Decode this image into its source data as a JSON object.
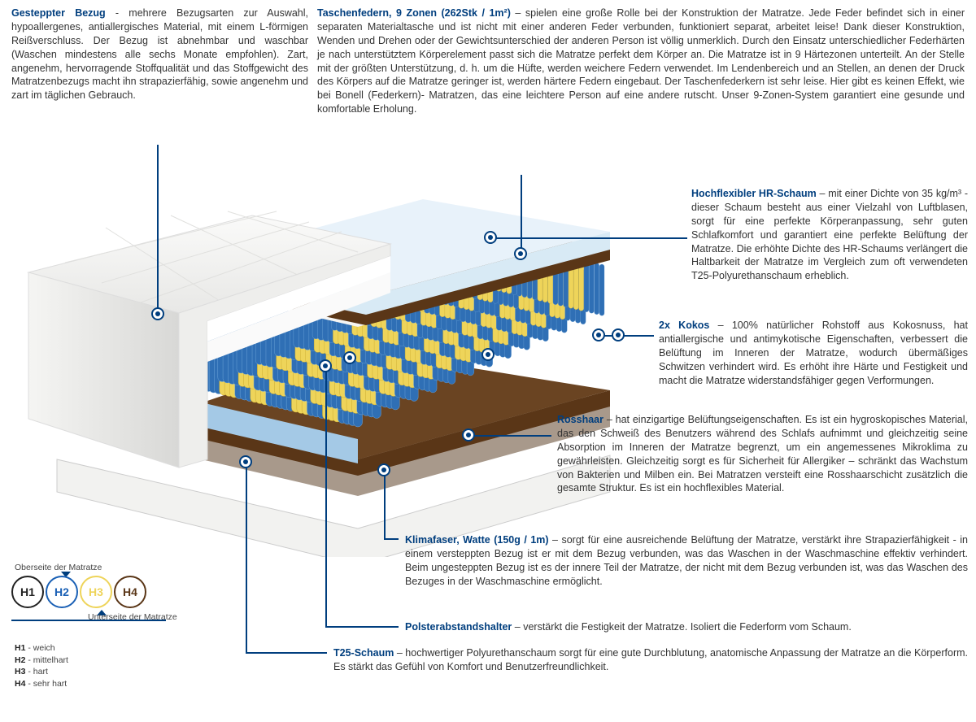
{
  "colors": {
    "accent": "#003e7e",
    "text": "#333333",
    "cover": "#f4f4f2",
    "cover_shadow": "#dedede",
    "foam_top": "#cfe6f5",
    "spring_blue": "#2f6fb5",
    "spring_blue_light": "#6fa6d9",
    "spring_yellow": "#eed45a",
    "spring_yellow_dark": "#caa92e",
    "kokos": "#5a3617",
    "rosshaar": "#a8998b",
    "t25": "#a4c9e6",
    "white": "#ffffff"
  },
  "sections": {
    "gesteppter": {
      "title": "Gesteppter Bezug",
      "sep": " - ",
      "text": "mehrere Bezugsarten zur Auswahl, hypoallergenes, antiallergisches Material, mit einem L-förmigen Reißverschluss. Der Bezug ist abnehmbar und waschbar (Waschen mindestens alle sechs Monate empfohlen). Zart, angenehm, hervorragende Stoffqualität und das Stoffgewicht des Matratzenbezugs macht ihn strapazierfähig, sowie angenehm und zart im täglichen Gebrauch."
    },
    "taschenfedern": {
      "title": "Taschenfedern, 9 Zonen (262Stk / 1m²)",
      "sep": " – ",
      "text": "spielen eine große Rolle bei der Konstruktion der Matratze. Jede Feder befindet sich in einer separaten Materialtasche und ist nicht mit einer anderen Feder verbunden, funktioniert separat, arbeitet leise! Dank dieser Konstruktion, Wenden und Drehen oder der Gewichtsunterschied der anderen Person ist völlig unmerklich. Durch den Einsatz unterschiedlicher Federhärten je nach unterstütztem Körperelement passt sich die Matratze perfekt dem Körper an. Die Matratze ist in 9 Härtezonen unterteilt. An der Stelle mit der größten Unterstützung, d. h. um die Hüfte, werden weichere Federn verwendet. Im Lendenbereich und an Stellen, an denen der Druck des Körpers auf die Matratze geringer ist, werden härtere Federn eingebaut. Der Taschenfederkern ist sehr leise. Hier gibt es keinen Effekt, wie bei Bonell (Federkern)- Matratzen, das eine leichtere Person auf eine andere rutscht. Unser 9-Zonen-System garantiert eine gesunde und komfortable Erholung."
    },
    "hr": {
      "title": "Hochflexibler HR-Schaum",
      "sep": " – ",
      "text": "mit einer Dichte von 35 kg/m³ - dieser Schaum besteht aus einer Vielzahl von Luftblasen, sorgt für eine perfekte Körperanpassung, sehr guten Schlafkomfort und garantiert eine perfekte Belüftung der Matratze. Die erhöhte Dichte des HR-Schaums verlängert die Haltbarkeit der Matratze im Vergleich zum oft verwendeten T25-Polyurethanschaum erheblich."
    },
    "kokos": {
      "title": "2x Kokos",
      "sep": " – ",
      "text": "100% natürlicher Rohstoff aus Kokosnuss, hat antiallergische und antimykotische Eigenschaften, verbessert die Belüftung im Inneren der Matratze, wodurch übermäßiges Schwitzen verhindert wird. Es erhöht ihre Härte und Festigkeit und macht die Matratze widerstandsfähiger gegen Verformungen."
    },
    "ross": {
      "title": "Rosshaar",
      "sep": " – ",
      "text": "hat einzigartige Belüftungseigenschaften. Es ist ein hygroskopisches Material, das den Schweiß des Benutzers während des Schlafs aufnimmt und gleichzeitig seine Absorption im Inneren der Matratze begrenzt, um ein angemessenes Mikroklima zu gewährleisten. Gleichzeitig sorgt es für Sicherheit für Allergiker – schränkt das Wachstum von Bakterien und Milben ein. Bei Matratzen versteift eine Rosshaarschicht zusätzlich die gesamte Struktur. Es ist ein hochflexibles Material."
    },
    "klima": {
      "title": "Klimafaser, Watte (150g / 1m)",
      "sep": " – ",
      "text": "sorgt für eine ausreichende Belüftung der Matratze, verstärkt ihre Strapazierfähigkeit - in einem versteppten Bezug ist er mit dem Bezug verbunden, was das Waschen in der Waschmaschine effektiv verhindert. Beim ungesteppten Bezug ist es der innere Teil der Matratze, der nicht mit dem Bezug verbunden ist, was das Waschen des Bezuges in der Waschmaschine ermöglicht."
    },
    "polster": {
      "title": "Polsterabstandshalter",
      "sep": " – ",
      "text": "verstärkt die Festigkeit der Matratze. Isoliert die Federform vom Schaum."
    },
    "t25": {
      "title": "T25-Schaum",
      "sep": " – ",
      "text": "hochwertiger Polyurethanschaum sorgt für eine gute Durchblutung, anatomische Anpassung der Matratze an die Körperform. Es stärkt das Gefühl von Komfort und Benutzerfreundlichkeit."
    }
  },
  "legend": {
    "top_label": "Oberseite der Matratze",
    "bottom_label": "Unterseite der Matratze",
    "items": [
      {
        "code": "H1",
        "color": "#222222",
        "def": "weich"
      },
      {
        "code": "H2",
        "color": "#1a60b5",
        "def": "mittelhart"
      },
      {
        "code": "H3",
        "color": "#eed45a",
        "def": "hart"
      },
      {
        "code": "H4",
        "color": "#5a3617",
        "def": "sehr hart"
      }
    ]
  },
  "mattress": {
    "spring_zones": [
      {
        "color": "blue",
        "count": 4
      },
      {
        "color": "yellow",
        "count": 3
      },
      {
        "color": "blue",
        "count": 3
      },
      {
        "color": "yellow",
        "count": 3
      },
      {
        "color": "blue",
        "count": 5
      },
      {
        "color": "yellow",
        "count": 3
      },
      {
        "color": "blue",
        "count": 3
      },
      {
        "color": "yellow",
        "count": 3
      },
      {
        "color": "blue",
        "count": 4
      }
    ]
  }
}
